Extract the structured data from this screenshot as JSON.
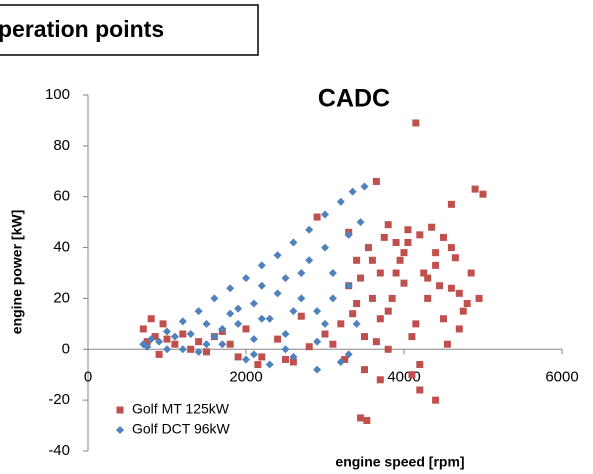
{
  "header": {
    "title": "peration points"
  },
  "chart_data": {
    "type": "scatter",
    "title": "CADC",
    "x_label": "engine speed [rpm]",
    "y_label": "engine power  [kW]",
    "xlim": [
      0,
      6000
    ],
    "xticks": [
      0,
      2000,
      4000,
      6000
    ],
    "ylim": [
      -40,
      100
    ],
    "yticks": [
      -40,
      -20,
      0,
      20,
      40,
      60,
      80,
      100
    ],
    "grid": false,
    "legend": "lower left",
    "series": [
      {
        "name": "Golf MT 125kW",
        "color": "#c0504d",
        "marker": "square",
        "x": [
          700,
          750,
          800,
          850,
          900,
          950,
          1000,
          1100,
          1200,
          1300,
          1400,
          1500,
          1600,
          1800,
          2000,
          2200,
          2400,
          2600,
          2800,
          3000,
          3200,
          3300,
          3400,
          3500,
          3600,
          3700,
          3800,
          3900,
          4000,
          4100,
          4200,
          4300,
          4400,
          4500,
          4600,
          4700,
          4800,
          3250,
          3350,
          3450,
          3550,
          3650,
          3750,
          3850,
          3950,
          4050,
          4150,
          4250,
          4350,
          4450,
          4550,
          4650,
          4750,
          3300,
          3500,
          3700,
          3900,
          4100,
          4300,
          4500,
          4700,
          3400,
          3600,
          3800,
          4000,
          4200,
          4400,
          4600,
          4150,
          3650,
          4600,
          4900,
          5000,
          3450,
          3530,
          4400,
          4200,
          3700,
          2900,
          3100,
          2500,
          1900,
          1700,
          4850,
          4950,
          3800,
          4050,
          2150,
          2700
        ],
        "y": [
          8,
          3,
          12,
          5,
          -2,
          10,
          4,
          2,
          6,
          0,
          3,
          -1,
          5,
          2,
          8,
          -3,
          4,
          -5,
          1,
          6,
          10,
          25,
          35,
          -8,
          20,
          30,
          15,
          42,
          38,
          5,
          45,
          28,
          33,
          12,
          40,
          22,
          18,
          -4,
          14,
          28,
          40,
          3,
          44,
          20,
          35,
          47,
          10,
          30,
          48,
          25,
          2,
          36,
          15,
          46,
          5,
          12,
          30,
          -10,
          20,
          44,
          8,
          18,
          35,
          0,
          26,
          -6,
          38,
          24,
          89,
          66,
          57,
          63,
          61,
          -27,
          -28,
          -20,
          -16,
          -12,
          52,
          2,
          -4,
          -3,
          7,
          30,
          20,
          49,
          42,
          -6,
          13
        ]
      },
      {
        "name": "Golf DCT 96kW",
        "color": "#4f81bd",
        "marker": "diamond",
        "x": [
          3500,
          3350,
          3200,
          3000,
          2800,
          2600,
          2400,
          2200,
          2000,
          1800,
          1600,
          1400,
          1200,
          1000,
          800,
          700,
          750,
          900,
          1100,
          1300,
          1500,
          1700,
          1900,
          2100,
          2300,
          2500,
          2700,
          2900,
          3100,
          3300,
          1200,
          1500,
          1800,
          2100,
          2400,
          2700,
          3000,
          3300,
          1600,
          1900,
          2200,
          2500,
          2800,
          3100,
          3400,
          2000,
          2300,
          2600,
          2900,
          3200,
          1000,
          1400,
          1700,
          2100,
          2500,
          2900,
          3300,
          3450,
          2200,
          2600,
          3000
        ],
        "y": [
          64,
          62,
          58,
          53,
          47,
          42,
          37,
          33,
          28,
          24,
          20,
          15,
          11,
          7,
          4,
          2,
          1,
          3,
          5,
          6,
          2,
          8,
          10,
          4,
          12,
          6,
          20,
          15,
          30,
          25,
          0,
          10,
          14,
          18,
          22,
          30,
          40,
          45,
          5,
          16,
          25,
          28,
          35,
          20,
          10,
          -4,
          -6,
          -3,
          -8,
          -5,
          0,
          -1,
          2,
          -2,
          0,
          3,
          -2,
          50,
          12,
          15,
          10
        ]
      }
    ]
  }
}
